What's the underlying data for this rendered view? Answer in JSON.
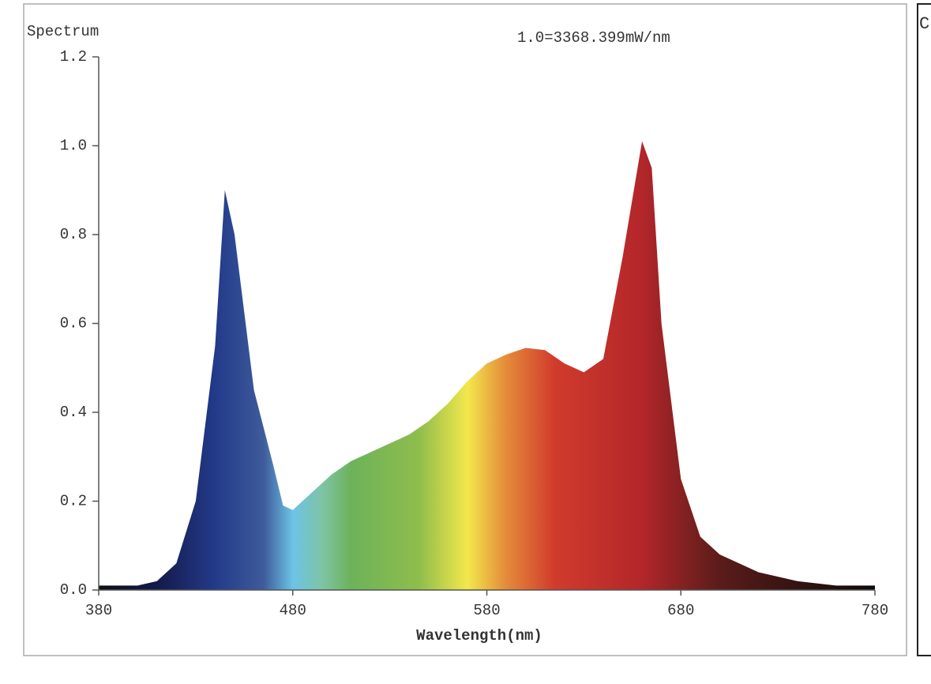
{
  "chart_data": {
    "type": "area",
    "title": "Spectrum",
    "annotation": "1.0=3368.399mW/nm",
    "xlabel": "Wavelength(nm)",
    "x": [
      380,
      390,
      400,
      410,
      420,
      430,
      440,
      445,
      450,
      460,
      470,
      475,
      480,
      490,
      500,
      510,
      520,
      530,
      540,
      550,
      560,
      570,
      580,
      590,
      600,
      610,
      620,
      630,
      640,
      650,
      660,
      665,
      670,
      680,
      690,
      700,
      720,
      740,
      760,
      780
    ],
    "values": [
      0.01,
      0.01,
      0.01,
      0.02,
      0.06,
      0.2,
      0.55,
      0.9,
      0.8,
      0.45,
      0.28,
      0.19,
      0.18,
      0.22,
      0.26,
      0.29,
      0.31,
      0.33,
      0.35,
      0.38,
      0.42,
      0.47,
      0.51,
      0.53,
      0.545,
      0.54,
      0.51,
      0.49,
      0.52,
      0.75,
      1.01,
      0.95,
      0.6,
      0.25,
      0.12,
      0.08,
      0.04,
      0.02,
      0.01,
      0.01
    ],
    "xlim": [
      380,
      780
    ],
    "xticks": [
      380,
      480,
      580,
      680,
      780
    ],
    "ylim": [
      0,
      1.2
    ],
    "yticks": [
      {
        "value": 0,
        "label": "0.0"
      },
      0.2,
      0.4,
      0.6,
      0.8,
      {
        "value": 1,
        "label": "1.0"
      },
      1.2
    ],
    "grid": false,
    "gradient": [
      {
        "x": 380,
        "color": "#0d0f14"
      },
      {
        "x": 410,
        "color": "#141a4a"
      },
      {
        "x": 440,
        "color": "#233a8a"
      },
      {
        "x": 465,
        "color": "#3e5b9a"
      },
      {
        "x": 480,
        "color": "#6cc3e6"
      },
      {
        "x": 495,
        "color": "#7ec4a6"
      },
      {
        "x": 510,
        "color": "#6db25a"
      },
      {
        "x": 545,
        "color": "#8fbd4c"
      },
      {
        "x": 570,
        "color": "#f2e84c"
      },
      {
        "x": 590,
        "color": "#e58a3a"
      },
      {
        "x": 615,
        "color": "#d03b2c"
      },
      {
        "x": 660,
        "color": "#b3262a"
      },
      {
        "x": 700,
        "color": "#5a1c1a"
      },
      {
        "x": 780,
        "color": "#0d0a0a"
      }
    ]
  },
  "side_panel": {
    "title": "C"
  }
}
